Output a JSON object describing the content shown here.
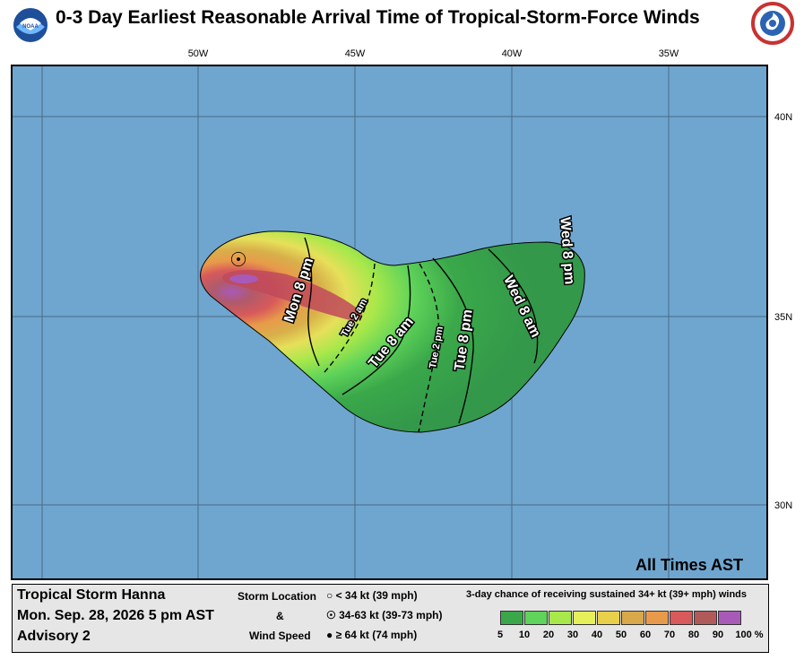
{
  "title": "0-3 Day Earliest Reasonable Arrival Time of Tropical-Storm-Force Winds",
  "logos": {
    "left": "noaa-logo",
    "right": "nws-logo"
  },
  "axes": {
    "lon_labels": [
      "50W",
      "45W",
      "40W",
      "35W"
    ],
    "lat_labels": [
      "40N",
      "35N",
      "30N"
    ]
  },
  "colors": {
    "ocean": "#6fa6cf",
    "land_frame": "#000000",
    "grid": "#4a6b85"
  },
  "arrival_labels": {
    "mon8pm": "Mon 8 pm",
    "tue2am": "Tue 2 am",
    "tue8am": "Tue 8 am",
    "tue2pm": "Tue 2 pm",
    "tue8pm": "Tue 8 pm",
    "wed8am": "Wed 8 am",
    "wed8pm": "Wed 8 pm"
  },
  "all_times": "All Times AST",
  "storm": {
    "name": "Tropical Storm Hanna",
    "datetime": "Mon. Sep. 28, 2026  5 pm AST",
    "advisory": "Advisory 2"
  },
  "storm_location": {
    "label_1": "Storm Location",
    "label_2": "&",
    "label_3": "Wind Speed",
    "items": [
      "< 34 kt (39 mph)",
      "34-63 kt (39-73 mph)",
      "≥ 64 kt (74 mph)"
    ]
  },
  "colorbar": {
    "title": "3-day chance of receiving sustained 34+ kt (39+ mph) winds",
    "ticks": [
      "5",
      "10",
      "20",
      "30",
      "40",
      "50",
      "60",
      "70",
      "80",
      "90",
      "100 %"
    ],
    "colors": [
      "#3aa84a",
      "#5fd35a",
      "#a8e84a",
      "#e6f05a",
      "#e8d04a",
      "#d8a84a",
      "#e89a4a",
      "#d85a5a",
      "#b05a5a",
      "#a85ab8"
    ]
  }
}
